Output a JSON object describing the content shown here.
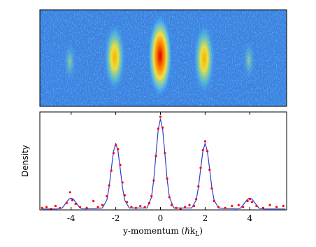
{
  "chart_data": {
    "type": "scatter-fit",
    "ylabel": "Density",
    "xlabel": [
      "y-momentum (ℏk",
      "L",
      ")"
    ],
    "xlim": [
      -5.4,
      5.65
    ],
    "ylim": [
      0,
      1
    ],
    "xticks": [
      -4,
      -2,
      0,
      2,
      4
    ],
    "series": [
      {
        "kind": "scatter",
        "color": "#ff0000",
        "x": [
          -5.3,
          -5.1,
          -4.9,
          -4.7,
          -4.5,
          -4.2,
          -4.05,
          -3.95,
          -3.8,
          -3.6,
          -3.3,
          -3.0,
          -2.8,
          -2.6,
          -2.4,
          -2.3,
          -2.2,
          -2.1,
          -2.0,
          -1.9,
          -1.8,
          -1.7,
          -1.6,
          -1.5,
          -1.3,
          -1.1,
          -0.9,
          -0.7,
          -0.5,
          -0.4,
          -0.3,
          -0.2,
          -0.1,
          0,
          0.1,
          0.2,
          0.3,
          0.4,
          0.5,
          0.7,
          0.9,
          1.1,
          1.3,
          1.5,
          1.6,
          1.7,
          1.8,
          1.9,
          2.0,
          2.1,
          2.2,
          2.3,
          2.4,
          2.6,
          2.9,
          3.2,
          3.5,
          3.7,
          3.9,
          4.0,
          4.1,
          4.3,
          4.6,
          4.9,
          5.2,
          5.5
        ],
        "values": [
          0.02,
          0.03,
          0.01,
          0.04,
          0.02,
          0.07,
          0.18,
          0.1,
          0.06,
          0.03,
          0.02,
          0.09,
          0.03,
          0.05,
          0.14,
          0.25,
          0.4,
          0.58,
          0.66,
          0.62,
          0.46,
          0.28,
          0.15,
          0.08,
          0.03,
          0.02,
          0.04,
          0.03,
          0.07,
          0.14,
          0.3,
          0.55,
          0.83,
          0.95,
          0.84,
          0.58,
          0.32,
          0.13,
          0.05,
          0.02,
          0.01,
          0.03,
          0.05,
          0.04,
          0.11,
          0.24,
          0.43,
          0.61,
          0.7,
          0.6,
          0.41,
          0.22,
          0.09,
          0.03,
          0.02,
          0.04,
          0.05,
          0.03,
          0.09,
          0.11,
          0.08,
          0.04,
          0.02,
          0.05,
          0.03,
          0.04
        ]
      },
      {
        "kind": "line",
        "color": "#2b3fd4",
        "x": [
          -5.3,
          -4.6,
          -4.4,
          -4.3,
          -4.2,
          -4.1,
          -4,
          -3.9,
          -3.8,
          -3.7,
          -3.6,
          -3.4,
          -2.6,
          -2.4,
          -2.3,
          -2.2,
          -2.1,
          -2,
          -1.9,
          -1.8,
          -1.7,
          -1.6,
          -1.4,
          -0.6,
          -0.4,
          -0.3,
          -0.2,
          -0.1,
          0,
          0.1,
          0.2,
          0.3,
          0.4,
          0.6,
          1.4,
          1.6,
          1.7,
          1.8,
          1.9,
          2,
          2.1,
          2.2,
          2.3,
          2.4,
          2.6,
          3.4,
          3.6,
          3.7,
          3.8,
          3.9,
          4,
          4.1,
          4.2,
          4.3,
          4.4,
          4.6,
          5.6
        ],
        "values": [
          0.01,
          0.01,
          0.02,
          0.05,
          0.08,
          0.11,
          0.12,
          0.11,
          0.08,
          0.05,
          0.02,
          0.01,
          0.02,
          0.1,
          0.23,
          0.42,
          0.6,
          0.68,
          0.6,
          0.42,
          0.23,
          0.1,
          0.02,
          0.02,
          0.13,
          0.31,
          0.57,
          0.82,
          0.93,
          0.82,
          0.57,
          0.31,
          0.13,
          0.02,
          0.02,
          0.1,
          0.23,
          0.42,
          0.6,
          0.68,
          0.6,
          0.42,
          0.23,
          0.1,
          0.02,
          0.01,
          0.02,
          0.05,
          0.08,
          0.11,
          0.12,
          0.11,
          0.08,
          0.05,
          0.02,
          0.01,
          0.01
        ]
      }
    ]
  }
}
